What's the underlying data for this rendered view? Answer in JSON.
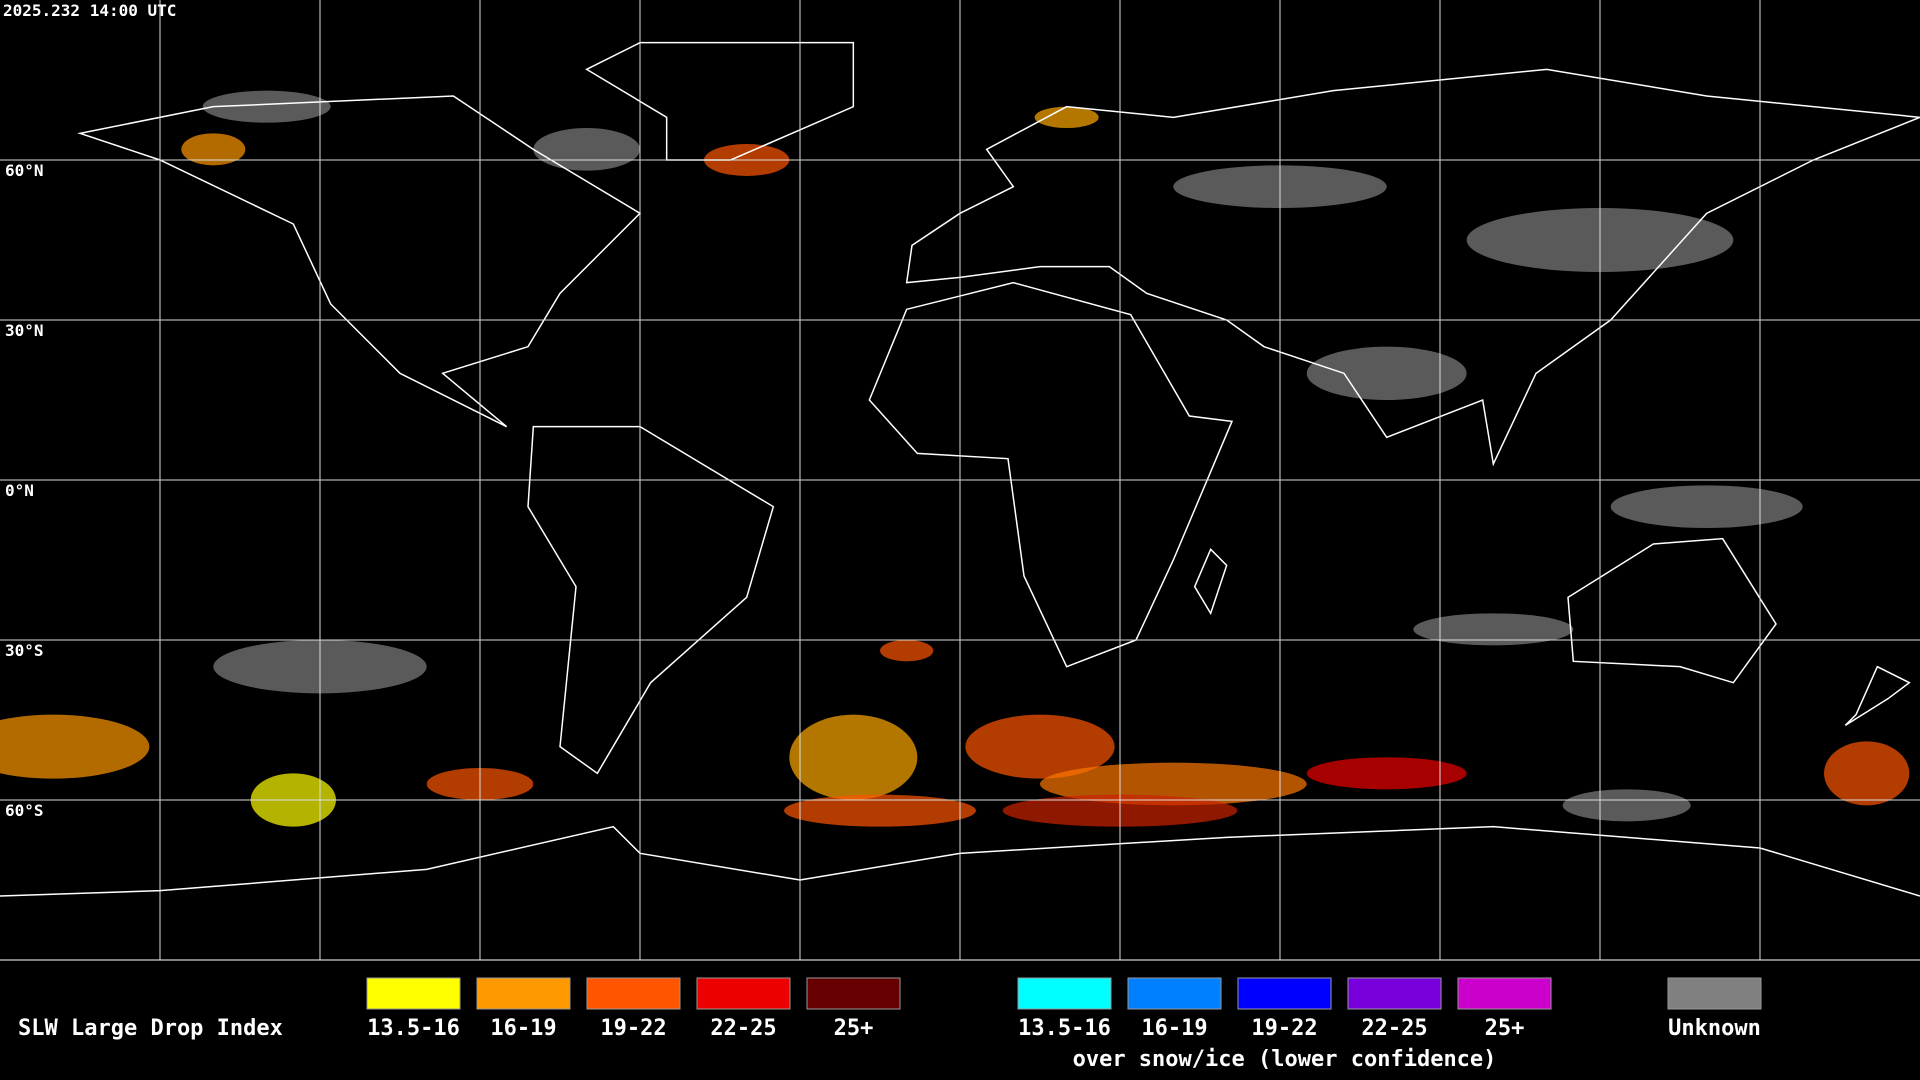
{
  "timestamp": "2025.232 14:00 UTC",
  "latitude_labels": [
    "60°N",
    "30°N",
    "0°N",
    "30°S",
    "60°S"
  ],
  "legend": {
    "title": "SLW Large Drop Index",
    "groups": [
      {
        "items": [
          {
            "label": "13.5-16",
            "color": "#ffff00"
          },
          {
            "label": "16-19",
            "color": "#ff9900"
          },
          {
            "label": "19-22",
            "color": "#ff5500"
          },
          {
            "label": "22-25",
            "color": "#ee0000"
          },
          {
            "label": "25+",
            "color": "#660000"
          }
        ]
      },
      {
        "items": [
          {
            "label": "13.5-16",
            "color": "#00ffff"
          },
          {
            "label": "16-19",
            "color": "#0080ff"
          },
          {
            "label": "19-22",
            "color": "#0000ff"
          },
          {
            "label": "22-25",
            "color": "#7700dd"
          },
          {
            "label": "25+",
            "color": "#cc00cc"
          }
        ],
        "note": "over snow/ice (lower confidence)"
      }
    ],
    "unknown": {
      "label": "Unknown",
      "color": "#808080"
    }
  }
}
